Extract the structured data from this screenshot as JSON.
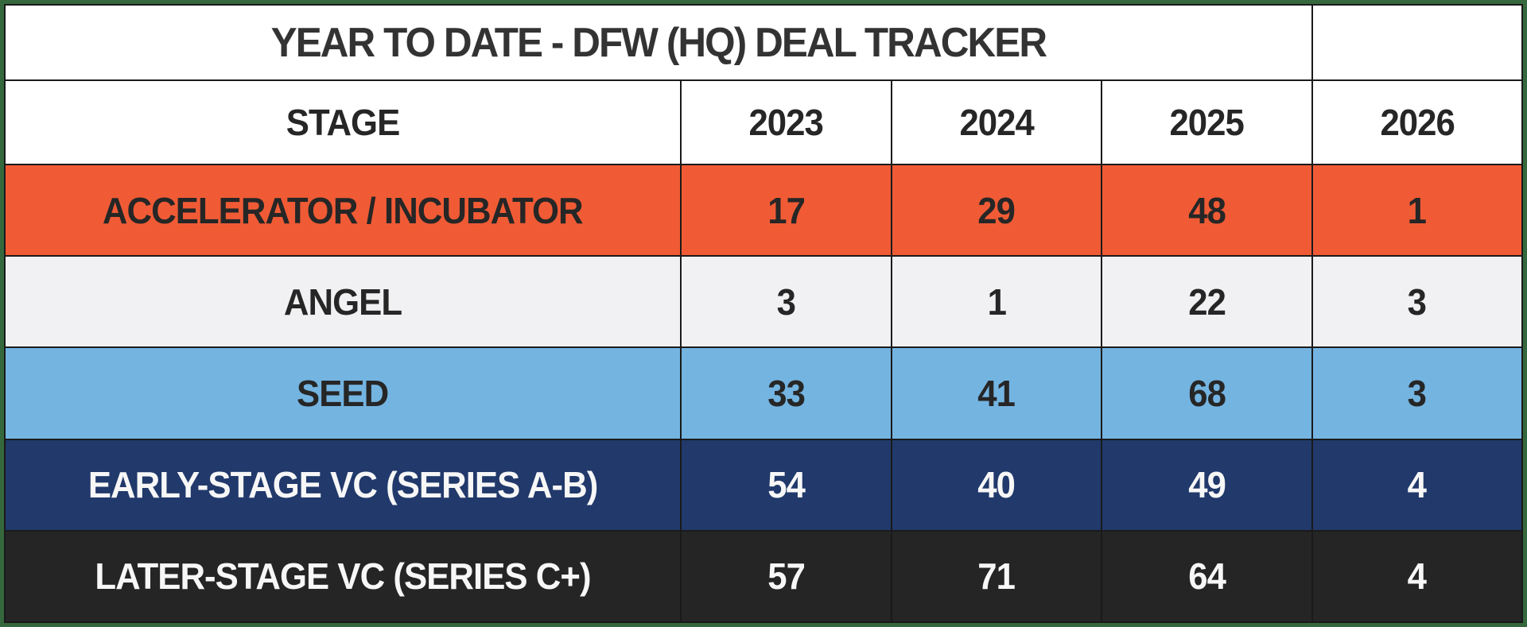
{
  "frame": {
    "border_color": "#35693D",
    "grid_color": "#1A1A1A"
  },
  "table": {
    "title": "YEAR TO DATE - DFW (HQ) DEAL TRACKER",
    "title_color": "#333333",
    "corner_cell": "",
    "header": {
      "labels": [
        "STAGE",
        "2023",
        "2024",
        "2025",
        "2026"
      ],
      "bg": "#FFFFFF",
      "text_color": "#262626"
    },
    "rows": [
      {
        "label": "ACCELERATOR / INCUBATOR",
        "values": [
          "17",
          "29",
          "48",
          "1"
        ],
        "bg": "#F05B35",
        "text_color": "#262626"
      },
      {
        "label": "ANGEL",
        "values": [
          "3",
          "1",
          "22",
          "3"
        ],
        "bg": "#F1F1F3",
        "text_color": "#262626"
      },
      {
        "label": "SEED",
        "values": [
          "33",
          "41",
          "68",
          "3"
        ],
        "bg": "#74B4E1",
        "text_color": "#262626"
      },
      {
        "label": "EARLY-STAGE VC (SERIES A-B)",
        "values": [
          "54",
          "40",
          "49",
          "4"
        ],
        "bg": "#21396B",
        "text_color": "#F7F7F7"
      },
      {
        "label": "LATER-STAGE VC (SERIES C+)",
        "values": [
          "57",
          "71",
          "64",
          "4"
        ],
        "bg": "#252525",
        "text_color": "#F7F7F7"
      }
    ]
  },
  "chart_data": {
    "type": "table",
    "title": "YEAR TO DATE - DFW (HQ) DEAL TRACKER",
    "categories": [
      "2023",
      "2024",
      "2025",
      "2026"
    ],
    "series": [
      {
        "name": "ACCELERATOR / INCUBATOR",
        "values": [
          17,
          29,
          48,
          1
        ]
      },
      {
        "name": "ANGEL",
        "values": [
          3,
          1,
          22,
          3
        ]
      },
      {
        "name": "SEED",
        "values": [
          33,
          41,
          68,
          3
        ]
      },
      {
        "name": "EARLY-STAGE VC (SERIES A-B)",
        "values": [
          54,
          40,
          49,
          4
        ]
      },
      {
        "name": "LATER-STAGE VC (SERIES C+)",
        "values": [
          57,
          71,
          64,
          4
        ]
      }
    ],
    "row_colors": [
      "#F05B35",
      "#F1F1F3",
      "#74B4E1",
      "#21396B",
      "#252525"
    ],
    "legend_position": "none",
    "grid": true
  }
}
